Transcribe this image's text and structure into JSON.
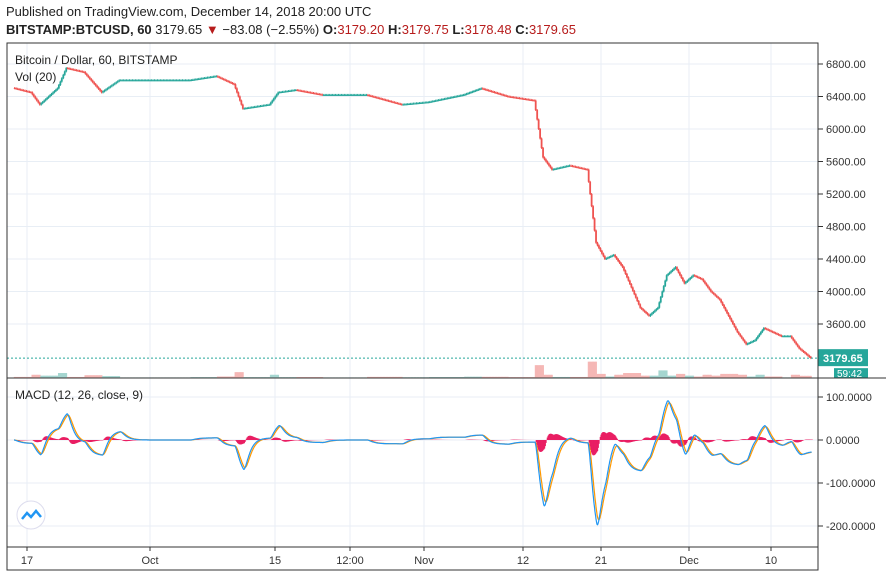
{
  "header": {
    "published": "Published on TradingView.com, December 14, 2018 20:00 UTC",
    "symbol": "BITSTAMP:BTCUSD, 60",
    "last": "3179.65",
    "change": "−83.08 (−2.55%)",
    "o_label": "O:",
    "o": "3179.20",
    "h_label": "H:",
    "h": "3179.75",
    "l_label": "L:",
    "l": "3178.48",
    "c_label": "C:",
    "c": "3179.65"
  },
  "chart_data": [
    {
      "type": "line",
      "title": "Bitcoin / Dollar, 60, BITSTAMP",
      "subtitle": "Vol (20)",
      "x": [
        "2018-09-15",
        "2018-09-17",
        "2018-09-18",
        "2018-09-20",
        "2018-09-21",
        "2018-09-23",
        "2018-09-25",
        "2018-09-27",
        "2018-09-29",
        "2018-10-01",
        "2018-10-05",
        "2018-10-08",
        "2018-10-10",
        "2018-10-11",
        "2018-10-14",
        "2018-10-15",
        "2018-10-17",
        "2018-10-20",
        "2018-10-25",
        "2018-10-29",
        "2018-11-01",
        "2018-11-05",
        "2018-11-07",
        "2018-11-10",
        "2018-11-13",
        "2018-11-14",
        "2018-11-15",
        "2018-11-17",
        "2018-11-19",
        "2018-11-20",
        "2018-11-21",
        "2018-11-22",
        "2018-11-23",
        "2018-11-25",
        "2018-11-26",
        "2018-11-27",
        "2018-11-28",
        "2018-11-29",
        "2018-11-30",
        "2018-12-01",
        "2018-12-02",
        "2018-12-03",
        "2018-12-04",
        "2018-12-05",
        "2018-12-06",
        "2018-12-07",
        "2018-12-08",
        "2018-12-09",
        "2018-12-10",
        "2018-12-11",
        "2018-12-12",
        "2018-12-13",
        "2018-12-14"
      ],
      "values": [
        6505,
        6450,
        6300,
        6500,
        6750,
        6700,
        6450,
        6600,
        6600,
        6600,
        6600,
        6650,
        6550,
        6250,
        6300,
        6450,
        6480,
        6420,
        6420,
        6300,
        6330,
        6420,
        6500,
        6400,
        6350,
        5650,
        5500,
        5550,
        5500,
        4600,
        4400,
        4450,
        4300,
        3800,
        3700,
        3800,
        4200,
        4300,
        4100,
        4200,
        4150,
        4000,
        3900,
        3700,
        3500,
        3350,
        3400,
        3550,
        3500,
        3450,
        3450,
        3300,
        3179.65
      ],
      "y_ticks": [
        "6800.00",
        "6400.00",
        "6000.00",
        "5600.00",
        "5200.00",
        "4800.00",
        "4400.00",
        "4000.00",
        "3600.00"
      ],
      "ylim": [
        3000,
        7050
      ],
      "last_price_label": "3179.65",
      "countdown": "59:42",
      "colors": {
        "up": "#26a69a",
        "down": "#ef5350",
        "last": "#26a69a"
      }
    },
    {
      "type": "line",
      "title": "MACD (12, 26, close, 9)",
      "series": [
        {
          "color": "#2196f3"
        },
        {
          "color": "#ff9800"
        }
      ],
      "histogram_color": "#e91e63",
      "y_ticks": [
        "100.0000",
        "0.0000",
        "-100.0000",
        "-200.0000"
      ],
      "ylim": [
        -240,
        135
      ]
    }
  ],
  "x_ticks": [
    "17",
    "Oct",
    "15",
    "12:00",
    "Nov",
    "12",
    "21",
    "Dec",
    "10"
  ]
}
